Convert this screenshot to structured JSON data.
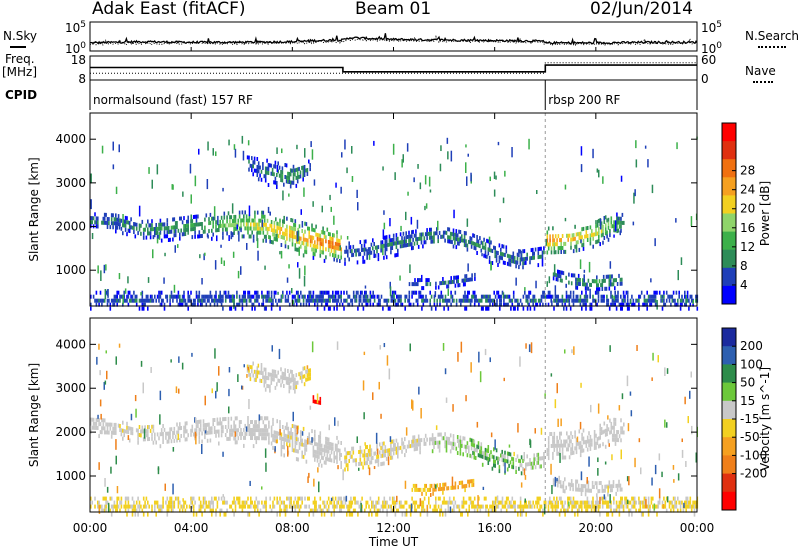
{
  "header": {
    "radar": "Adak East (fitACF)",
    "beam": "Beam 01",
    "date": "02/Jun/2014"
  },
  "strip_labels": {
    "nsky": "N.Sky",
    "nsearch": "N.Search",
    "freq": "Freq.",
    "freq_unit": "[MHz]",
    "nave": "Nave",
    "cpid": "CPID"
  },
  "colors": {
    "power_scale": [
      "#0000ff",
      "#1f3fb8",
      "#2d8c58",
      "#3cb04a",
      "#8fd46a",
      "#f2d020",
      "#f5a020",
      "#f07010",
      "#e03010",
      "#ff0000"
    ],
    "velocity_scale": [
      "#1b2a9e",
      "#2d5fb0",
      "#2d8c4a",
      "#6cc83a",
      "#c8c8c8",
      "#f2d020",
      "#f5a020",
      "#ef7f1a",
      "#e03010",
      "#ff0000"
    ]
  },
  "chart_data": [
    {
      "type": "line",
      "panel": "noise",
      "title": "Adak East (fitACF)   Beam 01   02/Jun/2014",
      "xlabel": "",
      "ylabel": "N.Sky",
      "ylim_label": [
        "10^0",
        "10^5"
      ],
      "y_ticks_left": [
        "10^5",
        "10^0"
      ],
      "y_ticks_right": [
        "10^5",
        "10^0"
      ],
      "x_hours": [
        0,
        2,
        4,
        6,
        8,
        9,
        10,
        10.3,
        12,
        14,
        16,
        17.9,
        18,
        20,
        22,
        24
      ],
      "series": [
        {
          "name": "N.Sky",
          "values": [
            1.4,
            1.6,
            1.5,
            1.5,
            1.6,
            1.8,
            1.9,
            2.3,
            2.0,
            1.9,
            1.8,
            1.7,
            1.4,
            1.4,
            1.5,
            1.5
          ]
        },
        {
          "name": "N.Search",
          "values": [
            1.2,
            1.3,
            1.3,
            1.3,
            1.4,
            1.5,
            1.6,
            2.0,
            1.8,
            1.7,
            1.6,
            1.5,
            1.2,
            1.2,
            1.3,
            1.3
          ]
        }
      ]
    },
    {
      "type": "line",
      "panel": "frequency",
      "ylabel": "Freq. [MHz]",
      "y_ticks_left": [
        "18",
        "8"
      ],
      "y_ticks_right": [
        "60",
        "0"
      ],
      "x_hours": [
        0,
        10,
        10,
        18,
        18,
        24
      ],
      "series": [
        {
          "name": "Freq.",
          "values": [
            13.2,
            13.2,
            11.4,
            11.4,
            14.2,
            14.2
          ]
        },
        {
          "name": "Nave",
          "values": [
            17,
            17,
            17,
            17,
            43,
            43
          ]
        }
      ]
    },
    {
      "type": "table",
      "panel": "cpid",
      "rows": [
        {
          "start_hour": 0,
          "end_hour": 18,
          "label": "normalsound (fast) 157 RF"
        },
        {
          "start_hour": 18,
          "end_hour": 24,
          "label": "rbsp 200 RF"
        }
      ]
    },
    {
      "type": "heatmap",
      "panel": "power",
      "ylabel": "Slant Range [km]",
      "ylim": [
        180,
        4600
      ],
      "y_ticks": [
        "1000",
        "2000",
        "3000",
        "4000"
      ],
      "colorbar_label": "Power [dB]",
      "colorbar_ticks": [
        "4",
        "8",
        "12",
        "16",
        "20",
        "24",
        "28"
      ],
      "colorbar_range": [
        0,
        30
      ],
      "bands": [
        {
          "hours": [
            0,
            1,
            2,
            3,
            4,
            5,
            6,
            7,
            8,
            9,
            9.95
          ],
          "range_km": [
            2150,
            2100,
            1950,
            1950,
            2000,
            2050,
            2050,
            2000,
            1800,
            1650,
            1550
          ],
          "width_km": [
            180,
            200,
            200,
            240,
            260,
            280,
            320,
            360,
            380,
            380,
            330
          ],
          "peak_db": [
            6,
            7,
            8,
            9,
            10,
            12,
            14,
            18,
            20,
            22,
            24
          ]
        },
        {
          "hours": [
            10.05,
            11,
            12,
            13,
            14,
            15,
            16,
            17,
            17.95
          ],
          "range_km": [
            1400,
            1450,
            1600,
            1750,
            1800,
            1650,
            1400,
            1250,
            1350
          ],
          "width_km": [
            250,
            260,
            240,
            200,
            200,
            220,
            240,
            220,
            200
          ],
          "peak_db": [
            6,
            6,
            7,
            8,
            8,
            8,
            7,
            7,
            7
          ]
        },
        {
          "hours": [
            18.05,
            19,
            20,
            20.6,
            21.1
          ],
          "range_km": [
            1680,
            1720,
            1850,
            2050,
            2050
          ],
          "width_km": [
            320,
            300,
            300,
            280,
            260
          ],
          "peak_db": [
            22,
            18,
            16,
            12,
            8
          ]
        },
        {
          "hours": [
            18.3,
            19,
            20,
            21
          ],
          "range_km": [
            890,
            760,
            700,
            780
          ],
          "width_km": [
            150,
            170,
            180,
            140
          ],
          "peak_db": [
            6,
            8,
            10,
            7
          ]
        },
        {
          "hours": [
            12.6,
            13.5,
            14.5,
            15.2
          ],
          "range_km": [
            720,
            700,
            760,
            840
          ],
          "width_km": [
            100,
            120,
            120,
            100
          ],
          "peak_db": [
            6,
            6,
            7,
            6
          ]
        },
        {
          "hours": [
            6.2,
            7,
            8,
            8.7
          ],
          "range_km": [
            3450,
            3250,
            3150,
            3350
          ],
          "width_km": [
            180,
            300,
            260,
            200
          ],
          "peak_db": [
            6,
            8,
            9,
            7
          ]
        },
        {
          "hours": [
            0,
            6,
            12,
            18,
            24
          ],
          "range_km": [
            330,
            330,
            330,
            330,
            330
          ],
          "width_km": [
            200,
            200,
            200,
            200,
            200
          ],
          "peak_db": [
            6,
            6,
            6,
            6,
            6
          ]
        }
      ]
    },
    {
      "type": "heatmap",
      "panel": "velocity",
      "ylabel": "Slant Range [km]",
      "ylim": [
        180,
        4600
      ],
      "y_ticks": [
        "1000",
        "2000",
        "3000",
        "4000"
      ],
      "colorbar_label": "Velocity [m s^-1]",
      "colorbar_ticks": [
        "200",
        "100",
        "50",
        "15",
        "-15",
        "-50",
        "-100",
        "-200"
      ],
      "colorbar_range": [
        250,
        -250
      ],
      "bands": [
        {
          "hours": [
            0,
            1,
            2,
            3,
            4,
            5,
            6,
            7,
            8,
            9,
            9.95
          ],
          "range_km": [
            2150,
            2100,
            1950,
            1950,
            2000,
            2050,
            2050,
            2000,
            1800,
            1650,
            1550
          ],
          "width_km": [
            180,
            200,
            200,
            240,
            260,
            280,
            320,
            360,
            380,
            380,
            330
          ],
          "vel": [
            0,
            0,
            -5,
            0,
            0,
            0,
            0,
            0,
            -5,
            0,
            0
          ]
        },
        {
          "hours": [
            10.05,
            11,
            12,
            13,
            14,
            15,
            16,
            17,
            17.95
          ],
          "range_km": [
            1400,
            1450,
            1600,
            1750,
            1800,
            1650,
            1400,
            1250,
            1350
          ],
          "width_km": [
            250,
            260,
            240,
            200,
            200,
            220,
            240,
            220,
            200
          ],
          "vel": [
            -20,
            -10,
            -5,
            0,
            5,
            20,
            30,
            20,
            0
          ]
        },
        {
          "hours": [
            18.05,
            19,
            20,
            20.6,
            21.1
          ],
          "range_km": [
            1680,
            1720,
            1850,
            2050,
            2050
          ],
          "width_km": [
            320,
            300,
            300,
            280,
            260
          ],
          "vel": [
            0,
            0,
            0,
            0,
            0
          ]
        },
        {
          "hours": [
            18.3,
            19,
            20,
            21
          ],
          "range_km": [
            890,
            760,
            700,
            780
          ],
          "width_km": [
            150,
            170,
            180,
            140
          ],
          "vel": [
            0,
            0,
            0,
            0
          ]
        },
        {
          "hours": [
            12.6,
            13.5,
            14.5,
            15.2
          ],
          "range_km": [
            720,
            700,
            760,
            840
          ],
          "width_km": [
            100,
            120,
            120,
            100
          ],
          "vel": [
            -30,
            -40,
            -50,
            -40
          ]
        },
        {
          "hours": [
            6.2,
            7,
            8,
            8.7
          ],
          "range_km": [
            3450,
            3250,
            3150,
            3350
          ],
          "width_km": [
            180,
            300,
            260,
            200
          ],
          "vel": [
            -20,
            0,
            0,
            -30
          ]
        },
        {
          "hours": [
            8.8,
            9.1
          ],
          "range_km": [
            2720,
            2680
          ],
          "width_km": [
            120,
            120
          ],
          "vel": [
            -200,
            -180
          ]
        },
        {
          "hours": [
            0,
            6,
            12,
            18,
            24
          ],
          "range_km": [
            330,
            330,
            330,
            330,
            330
          ],
          "width_km": [
            200,
            200,
            200,
            200,
            200
          ],
          "vel": [
            -20,
            -20,
            -20,
            -20,
            -20
          ]
        }
      ],
      "x_ticks": [
        "00:00",
        "04:00",
        "08:00",
        "12:00",
        "16:00",
        "20:00",
        "00:00"
      ],
      "xlabel": "Time UT",
      "xlim_hours": [
        0,
        24
      ]
    }
  ]
}
